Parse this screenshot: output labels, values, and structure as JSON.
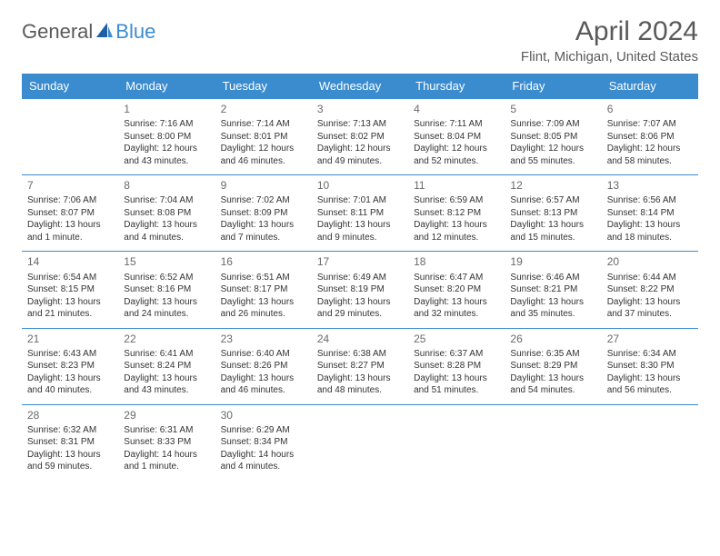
{
  "brand": {
    "general": "General",
    "blue": "Blue"
  },
  "title": "April 2024",
  "subtitle": "Flint, Michigan, United States",
  "colors": {
    "accent": "#3a8ccf",
    "text": "#5a5a5a",
    "cell_text": "#333333",
    "bg": "#ffffff"
  },
  "weekdays": [
    "Sunday",
    "Monday",
    "Tuesday",
    "Wednesday",
    "Thursday",
    "Friday",
    "Saturday"
  ],
  "weeks": [
    [
      null,
      {
        "n": "1",
        "sr": "Sunrise: 7:16 AM",
        "ss": "Sunset: 8:00 PM",
        "d1": "Daylight: 12 hours",
        "d2": "and 43 minutes."
      },
      {
        "n": "2",
        "sr": "Sunrise: 7:14 AM",
        "ss": "Sunset: 8:01 PM",
        "d1": "Daylight: 12 hours",
        "d2": "and 46 minutes."
      },
      {
        "n": "3",
        "sr": "Sunrise: 7:13 AM",
        "ss": "Sunset: 8:02 PM",
        "d1": "Daylight: 12 hours",
        "d2": "and 49 minutes."
      },
      {
        "n": "4",
        "sr": "Sunrise: 7:11 AM",
        "ss": "Sunset: 8:04 PM",
        "d1": "Daylight: 12 hours",
        "d2": "and 52 minutes."
      },
      {
        "n": "5",
        "sr": "Sunrise: 7:09 AM",
        "ss": "Sunset: 8:05 PM",
        "d1": "Daylight: 12 hours",
        "d2": "and 55 minutes."
      },
      {
        "n": "6",
        "sr": "Sunrise: 7:07 AM",
        "ss": "Sunset: 8:06 PM",
        "d1": "Daylight: 12 hours",
        "d2": "and 58 minutes."
      }
    ],
    [
      {
        "n": "7",
        "sr": "Sunrise: 7:06 AM",
        "ss": "Sunset: 8:07 PM",
        "d1": "Daylight: 13 hours",
        "d2": "and 1 minute."
      },
      {
        "n": "8",
        "sr": "Sunrise: 7:04 AM",
        "ss": "Sunset: 8:08 PM",
        "d1": "Daylight: 13 hours",
        "d2": "and 4 minutes."
      },
      {
        "n": "9",
        "sr": "Sunrise: 7:02 AM",
        "ss": "Sunset: 8:09 PM",
        "d1": "Daylight: 13 hours",
        "d2": "and 7 minutes."
      },
      {
        "n": "10",
        "sr": "Sunrise: 7:01 AM",
        "ss": "Sunset: 8:11 PM",
        "d1": "Daylight: 13 hours",
        "d2": "and 9 minutes."
      },
      {
        "n": "11",
        "sr": "Sunrise: 6:59 AM",
        "ss": "Sunset: 8:12 PM",
        "d1": "Daylight: 13 hours",
        "d2": "and 12 minutes."
      },
      {
        "n": "12",
        "sr": "Sunrise: 6:57 AM",
        "ss": "Sunset: 8:13 PM",
        "d1": "Daylight: 13 hours",
        "d2": "and 15 minutes."
      },
      {
        "n": "13",
        "sr": "Sunrise: 6:56 AM",
        "ss": "Sunset: 8:14 PM",
        "d1": "Daylight: 13 hours",
        "d2": "and 18 minutes."
      }
    ],
    [
      {
        "n": "14",
        "sr": "Sunrise: 6:54 AM",
        "ss": "Sunset: 8:15 PM",
        "d1": "Daylight: 13 hours",
        "d2": "and 21 minutes."
      },
      {
        "n": "15",
        "sr": "Sunrise: 6:52 AM",
        "ss": "Sunset: 8:16 PM",
        "d1": "Daylight: 13 hours",
        "d2": "and 24 minutes."
      },
      {
        "n": "16",
        "sr": "Sunrise: 6:51 AM",
        "ss": "Sunset: 8:17 PM",
        "d1": "Daylight: 13 hours",
        "d2": "and 26 minutes."
      },
      {
        "n": "17",
        "sr": "Sunrise: 6:49 AM",
        "ss": "Sunset: 8:19 PM",
        "d1": "Daylight: 13 hours",
        "d2": "and 29 minutes."
      },
      {
        "n": "18",
        "sr": "Sunrise: 6:47 AM",
        "ss": "Sunset: 8:20 PM",
        "d1": "Daylight: 13 hours",
        "d2": "and 32 minutes."
      },
      {
        "n": "19",
        "sr": "Sunrise: 6:46 AM",
        "ss": "Sunset: 8:21 PM",
        "d1": "Daylight: 13 hours",
        "d2": "and 35 minutes."
      },
      {
        "n": "20",
        "sr": "Sunrise: 6:44 AM",
        "ss": "Sunset: 8:22 PM",
        "d1": "Daylight: 13 hours",
        "d2": "and 37 minutes."
      }
    ],
    [
      {
        "n": "21",
        "sr": "Sunrise: 6:43 AM",
        "ss": "Sunset: 8:23 PM",
        "d1": "Daylight: 13 hours",
        "d2": "and 40 minutes."
      },
      {
        "n": "22",
        "sr": "Sunrise: 6:41 AM",
        "ss": "Sunset: 8:24 PM",
        "d1": "Daylight: 13 hours",
        "d2": "and 43 minutes."
      },
      {
        "n": "23",
        "sr": "Sunrise: 6:40 AM",
        "ss": "Sunset: 8:26 PM",
        "d1": "Daylight: 13 hours",
        "d2": "and 46 minutes."
      },
      {
        "n": "24",
        "sr": "Sunrise: 6:38 AM",
        "ss": "Sunset: 8:27 PM",
        "d1": "Daylight: 13 hours",
        "d2": "and 48 minutes."
      },
      {
        "n": "25",
        "sr": "Sunrise: 6:37 AM",
        "ss": "Sunset: 8:28 PM",
        "d1": "Daylight: 13 hours",
        "d2": "and 51 minutes."
      },
      {
        "n": "26",
        "sr": "Sunrise: 6:35 AM",
        "ss": "Sunset: 8:29 PM",
        "d1": "Daylight: 13 hours",
        "d2": "and 54 minutes."
      },
      {
        "n": "27",
        "sr": "Sunrise: 6:34 AM",
        "ss": "Sunset: 8:30 PM",
        "d1": "Daylight: 13 hours",
        "d2": "and 56 minutes."
      }
    ],
    [
      {
        "n": "28",
        "sr": "Sunrise: 6:32 AM",
        "ss": "Sunset: 8:31 PM",
        "d1": "Daylight: 13 hours",
        "d2": "and 59 minutes."
      },
      {
        "n": "29",
        "sr": "Sunrise: 6:31 AM",
        "ss": "Sunset: 8:33 PM",
        "d1": "Daylight: 14 hours",
        "d2": "and 1 minute."
      },
      {
        "n": "30",
        "sr": "Sunrise: 6:29 AM",
        "ss": "Sunset: 8:34 PM",
        "d1": "Daylight: 14 hours",
        "d2": "and 4 minutes."
      },
      null,
      null,
      null,
      null
    ]
  ]
}
